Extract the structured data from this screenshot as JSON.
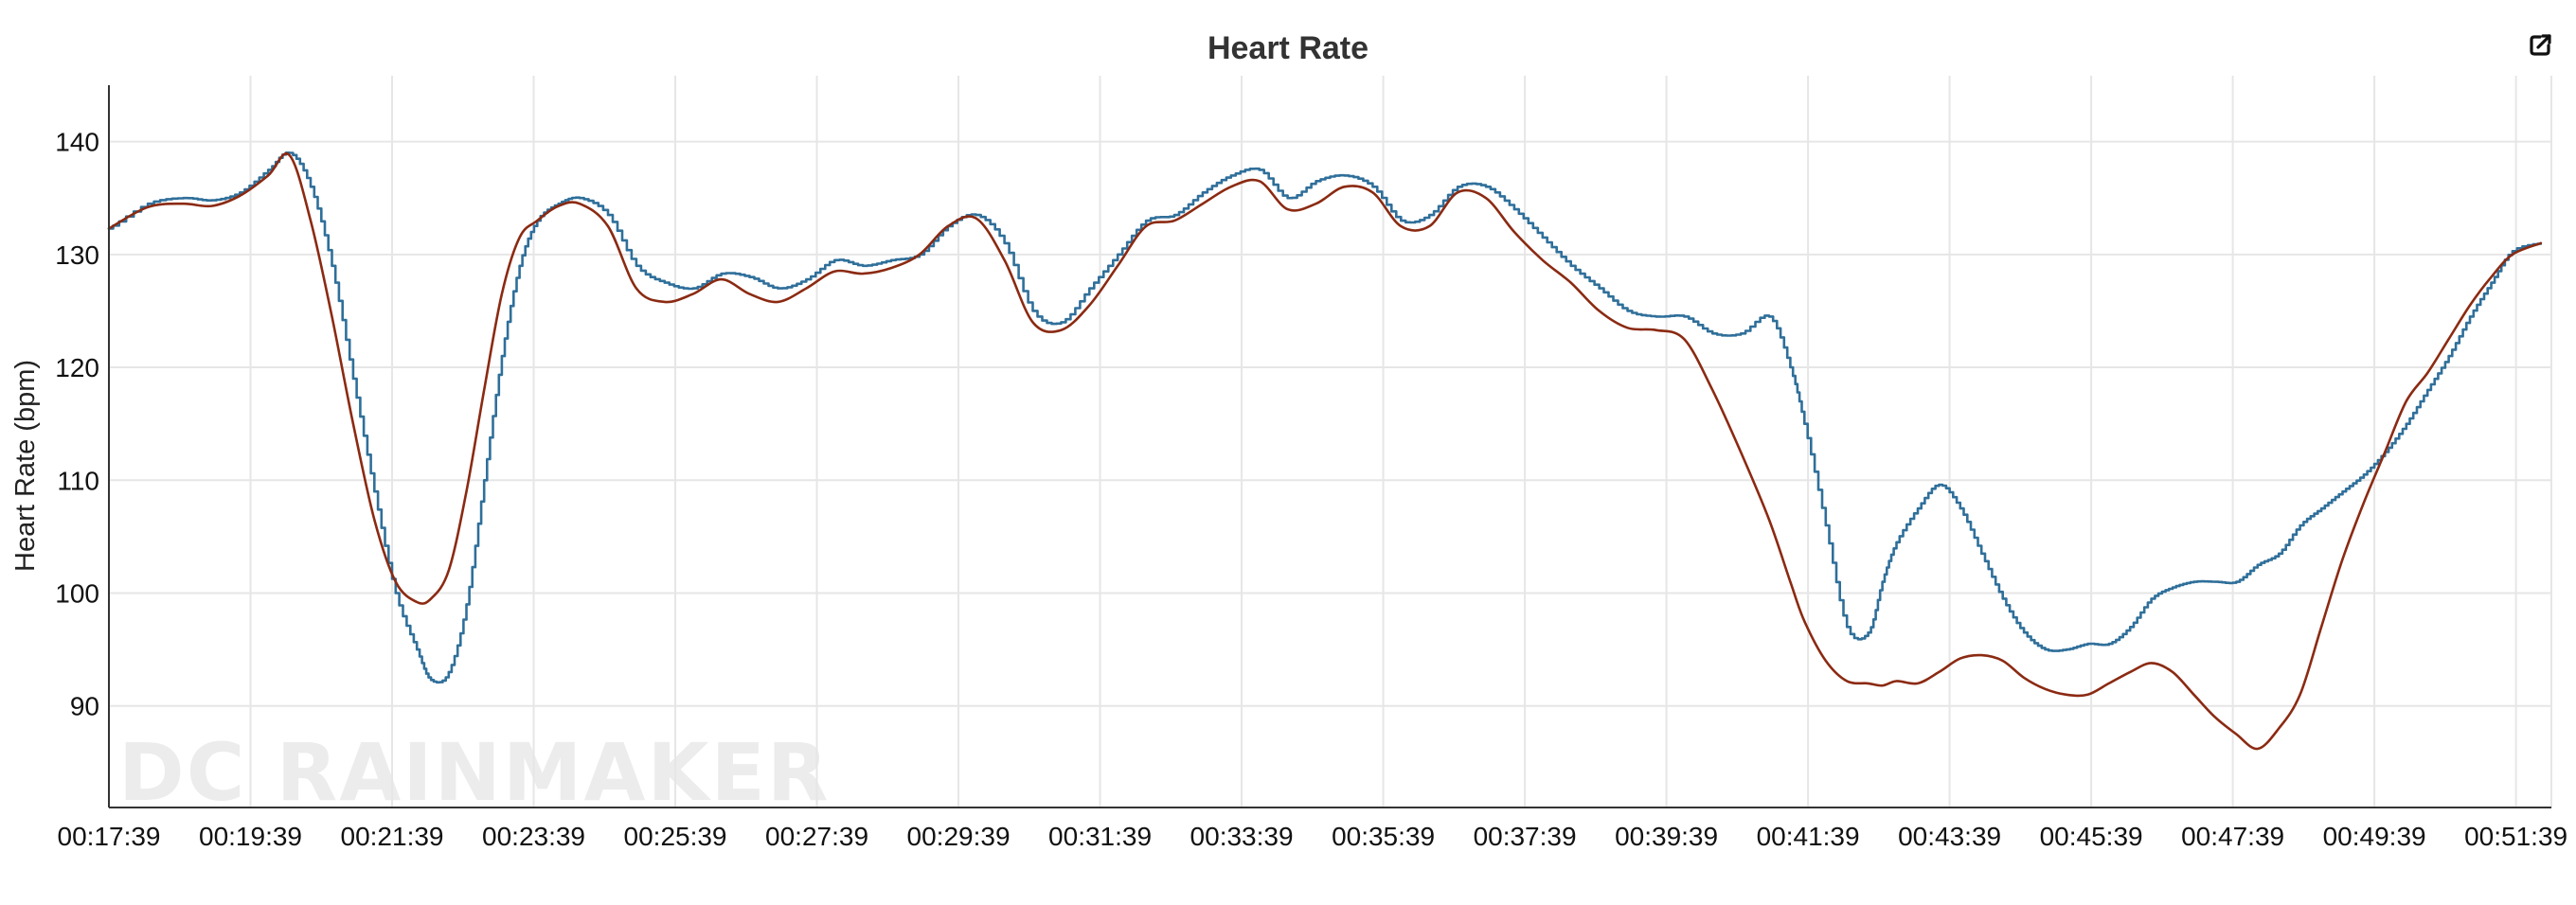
{
  "chart_data": {
    "type": "line",
    "title": "Heart Rate",
    "ylabel": "Heart Rate (bpm)",
    "xlabel": "",
    "watermark": "DC RAINMAKER",
    "ylim": [
      81,
      145
    ],
    "yticks": [
      90,
      100,
      110,
      120,
      130,
      140
    ],
    "xlim_minutes": [
      17.65,
      52.15
    ],
    "xtick_labels": [
      "00:17:39",
      "00:19:39",
      "00:21:39",
      "00:23:39",
      "00:25:39",
      "00:27:39",
      "00:29:39",
      "00:31:39",
      "00:33:39",
      "00:35:39",
      "00:37:39",
      "00:39:39",
      "00:41:39",
      "00:43:39",
      "00:45:39",
      "00:47:39",
      "00:49:39",
      "00:51:39"
    ],
    "xtick_minutes": [
      17.65,
      19.65,
      21.65,
      23.65,
      25.65,
      27.65,
      29.65,
      31.65,
      33.65,
      35.65,
      37.65,
      39.65,
      41.65,
      43.65,
      45.65,
      47.65,
      49.65,
      51.65
    ],
    "grid": true,
    "legend": "none",
    "series": [
      {
        "color": "#2f6f9a",
        "style": "step",
        "x": [
          17.65,
          18.2,
          18.7,
          19.1,
          19.5,
          19.9,
          20.2,
          20.5,
          20.8,
          21.1,
          21.4,
          21.7,
          22.0,
          22.2,
          22.45,
          22.7,
          22.95,
          23.2,
          23.45,
          23.7,
          24.0,
          24.3,
          24.7,
          25.1,
          25.5,
          25.9,
          26.3,
          26.7,
          27.1,
          27.5,
          27.9,
          28.3,
          28.7,
          29.1,
          29.5,
          29.9,
          30.3,
          30.7,
          31.1,
          31.5,
          31.9,
          32.3,
          32.7,
          33.1,
          33.5,
          33.9,
          34.3,
          34.7,
          35.1,
          35.5,
          35.9,
          36.3,
          36.7,
          37.1,
          37.5,
          37.9,
          38.3,
          38.7,
          39.1,
          39.5,
          39.9,
          40.3,
          40.7,
          41.1,
          41.4,
          41.6,
          41.9,
          42.2,
          42.5,
          42.7,
          42.9,
          43.2,
          43.5,
          43.8,
          44.1,
          44.4,
          44.7,
          45.0,
          45.3,
          45.6,
          45.9,
          46.2,
          46.5,
          46.8,
          47.1,
          47.4,
          47.7,
          48.0,
          48.3,
          48.6,
          48.9,
          49.2,
          49.5,
          49.8,
          50.1,
          50.4,
          50.7,
          51.0,
          51.3,
          51.6,
          52.0
        ],
        "y": [
          132.3,
          134.5,
          135.0,
          134.8,
          135.5,
          137.5,
          139.0,
          136.0,
          129.0,
          119.0,
          109.0,
          100.0,
          95.0,
          92.3,
          93.0,
          99.0,
          110.0,
          121.0,
          129.0,
          133.0,
          134.5,
          135.0,
          133.5,
          129.0,
          127.5,
          127.0,
          128.3,
          128.0,
          127.0,
          127.8,
          129.5,
          129.0,
          129.5,
          130.0,
          132.5,
          133.5,
          131.0,
          125.0,
          124.0,
          127.0,
          130.0,
          133.0,
          133.5,
          135.5,
          137.0,
          137.5,
          135.0,
          136.5,
          137.0,
          136.0,
          133.0,
          133.5,
          136.0,
          136.0,
          134.0,
          131.5,
          129.0,
          127.0,
          125.0,
          124.5,
          124.5,
          123.0,
          123.0,
          124.5,
          120.0,
          115.0,
          106.0,
          97.0,
          96.5,
          101.0,
          104.5,
          107.5,
          109.6,
          107.5,
          103.5,
          99.5,
          96.5,
          95.0,
          95.0,
          95.5,
          95.5,
          97.0,
          99.5,
          100.5,
          101.0,
          101.0,
          101.0,
          102.5,
          103.5,
          106.0,
          107.5,
          109.0,
          110.5,
          112.5,
          115.0,
          118.0,
          121.0,
          124.5,
          127.5,
          130.3,
          131.0
        ]
      },
      {
        "color": "#8b2a12",
        "style": "smooth",
        "x": [
          17.65,
          18.2,
          18.7,
          19.1,
          19.5,
          19.9,
          20.2,
          20.5,
          20.8,
          21.1,
          21.4,
          21.7,
          22.0,
          22.2,
          22.45,
          22.7,
          22.95,
          23.2,
          23.45,
          23.7,
          24.0,
          24.3,
          24.7,
          25.1,
          25.5,
          25.9,
          26.3,
          26.7,
          27.1,
          27.5,
          27.9,
          28.3,
          28.7,
          29.1,
          29.5,
          29.9,
          30.3,
          30.7,
          31.1,
          31.5,
          31.9,
          32.3,
          32.7,
          33.1,
          33.5,
          33.9,
          34.3,
          34.7,
          35.1,
          35.5,
          35.9,
          36.3,
          36.7,
          37.1,
          37.5,
          37.9,
          38.3,
          38.7,
          39.1,
          39.5,
          39.9,
          40.3,
          40.7,
          41.1,
          41.4,
          41.6,
          41.9,
          42.2,
          42.5,
          42.7,
          42.9,
          43.2,
          43.5,
          43.8,
          44.1,
          44.4,
          44.7,
          45.0,
          45.3,
          45.6,
          45.9,
          46.2,
          46.5,
          46.8,
          47.1,
          47.4,
          47.7,
          48.0,
          48.3,
          48.6,
          48.9,
          49.2,
          49.5,
          49.8,
          50.1,
          50.4,
          50.7,
          51.0,
          51.3,
          51.6,
          52.0
        ],
        "y": [
          132.3,
          134.2,
          134.5,
          134.3,
          135.2,
          137.0,
          138.8,
          133.0,
          124.5,
          115.0,
          106.5,
          101.0,
          99.2,
          99.5,
          102.0,
          109.0,
          118.0,
          126.5,
          131.5,
          133.0,
          134.3,
          134.5,
          132.5,
          127.0,
          125.8,
          126.5,
          127.8,
          126.5,
          125.8,
          127.0,
          128.5,
          128.3,
          128.8,
          130.0,
          132.5,
          133.2,
          129.5,
          124.0,
          123.3,
          125.5,
          129.0,
          132.5,
          133.0,
          134.5,
          136.0,
          136.5,
          134.0,
          134.5,
          136.0,
          135.5,
          132.5,
          132.5,
          135.5,
          135.0,
          132.0,
          129.5,
          127.5,
          125.0,
          123.5,
          123.3,
          122.5,
          118.0,
          112.5,
          106.5,
          101.0,
          97.5,
          94.0,
          92.2,
          92.0,
          91.8,
          92.2,
          92.0,
          93.0,
          94.2,
          94.5,
          94.0,
          92.5,
          91.5,
          91.0,
          91.0,
          92.0,
          93.0,
          93.8,
          93.0,
          91.0,
          89.0,
          87.5,
          86.2,
          88.0,
          91.0,
          97.0,
          103.0,
          108.0,
          112.5,
          117.0,
          119.5,
          122.5,
          125.5,
          128.0,
          130.0,
          131.0
        ]
      }
    ]
  }
}
